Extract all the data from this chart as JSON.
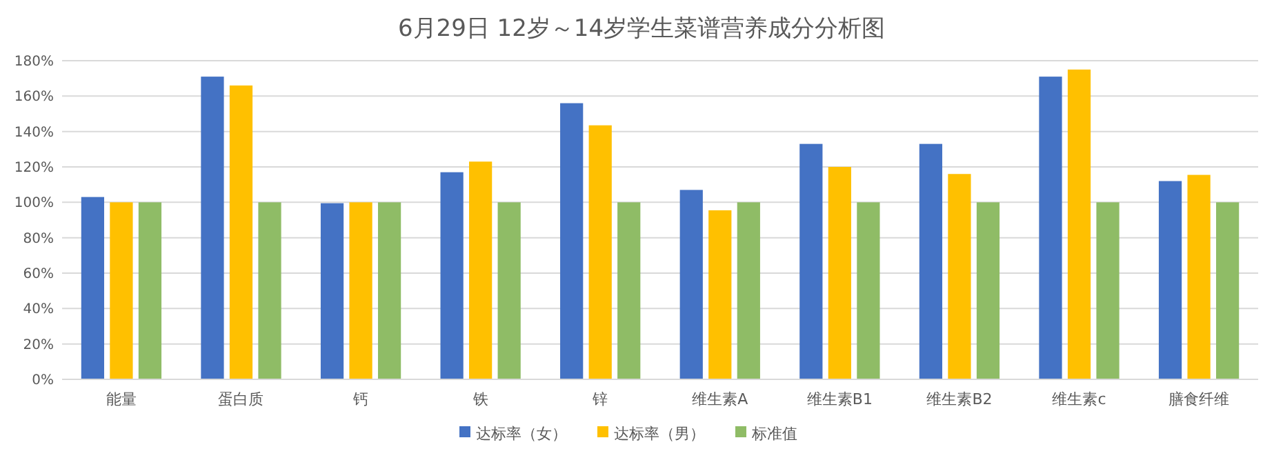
{
  "chart_data": {
    "type": "bar",
    "title": "6月29日 12岁～14岁学生菜谱营养成分分析图",
    "categories": [
      "能量",
      "蛋白质",
      "钙",
      "铁",
      "锌",
      "维生素A",
      "维生素B1",
      "维生素B2",
      "维生素c",
      "膳食纤维"
    ],
    "series": [
      {
        "name": "达标率（女）",
        "color": "#4472c4",
        "values": [
          103,
          171,
          99.5,
          117,
          156,
          107,
          133,
          133,
          171,
          112
        ]
      },
      {
        "name": "达标率（男）",
        "color": "#ffc000",
        "values": [
          100,
          166,
          100,
          123,
          143.5,
          95.5,
          120,
          116,
          175,
          115.5
        ]
      },
      {
        "name": "标准值",
        "color": "#8fbc66",
        "values": [
          100,
          100,
          100,
          100,
          100,
          100,
          100,
          100,
          100,
          100
        ]
      }
    ],
    "ylim": [
      0,
      180
    ],
    "yticks": [
      {
        "value": 0,
        "label": "0%"
      },
      {
        "value": 20,
        "label": "20%"
      },
      {
        "value": 40,
        "label": "40%"
      },
      {
        "value": 60,
        "label": "60%"
      },
      {
        "value": 80,
        "label": "80%"
      },
      {
        "value": 100,
        "label": "100%"
      },
      {
        "value": 120,
        "label": "120%"
      },
      {
        "value": 140,
        "label": "140%"
      },
      {
        "value": 160,
        "label": "160%"
      },
      {
        "value": 180,
        "label": "180%"
      }
    ],
    "grid": "y",
    "legend": "bottom"
  }
}
